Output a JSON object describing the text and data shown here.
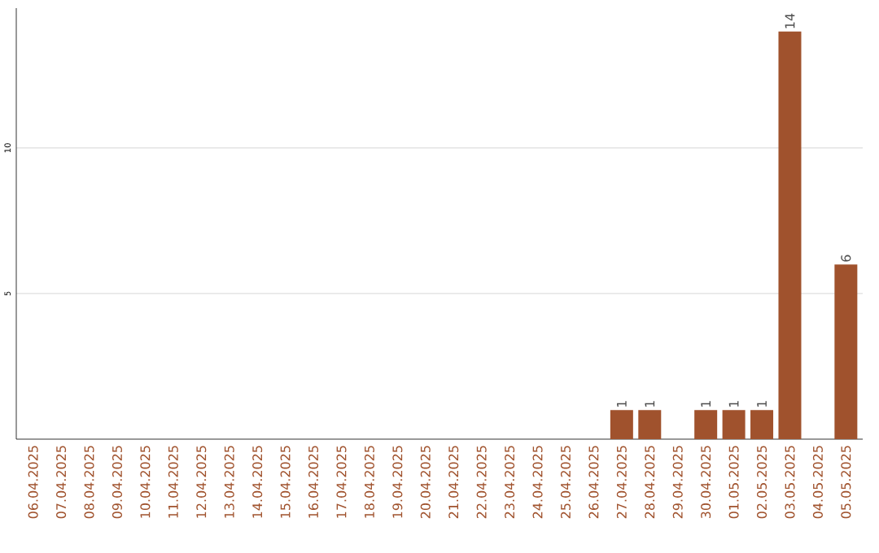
{
  "chart_data": {
    "type": "bar",
    "color": "#a0522d",
    "categories": [
      "06.04.2025",
      "07.04.2025",
      "08.04.2025",
      "09.04.2025",
      "10.04.2025",
      "11.04.2025",
      "12.04.2025",
      "13.04.2025",
      "14.04.2025",
      "15.04.2025",
      "16.04.2025",
      "17.04.2025",
      "18.04.2025",
      "19.04.2025",
      "20.04.2025",
      "21.04.2025",
      "22.04.2025",
      "23.04.2025",
      "24.04.2025",
      "25.04.2025",
      "26.04.2025",
      "27.04.2025",
      "28.04.2025",
      "29.04.2025",
      "30.04.2025",
      "01.05.2025",
      "02.05.2025",
      "03.05.2025",
      "04.05.2025",
      "05.05.2025"
    ],
    "values": [
      0,
      0,
      0,
      0,
      0,
      0,
      0,
      0,
      0,
      0,
      0,
      0,
      0,
      0,
      0,
      0,
      0,
      0,
      0,
      0,
      0,
      1,
      1,
      0,
      1,
      1,
      1,
      14,
      0,
      6
    ],
    "value_labels": [
      null,
      null,
      null,
      null,
      null,
      null,
      null,
      null,
      null,
      null,
      null,
      null,
      null,
      null,
      null,
      null,
      null,
      null,
      null,
      null,
      null,
      "1",
      "1",
      null,
      "1",
      "1",
      "1",
      "14",
      null,
      "6"
    ],
    "ylim": [
      0,
      14.8
    ],
    "yticks": [
      5,
      10
    ],
    "grid": "y"
  }
}
